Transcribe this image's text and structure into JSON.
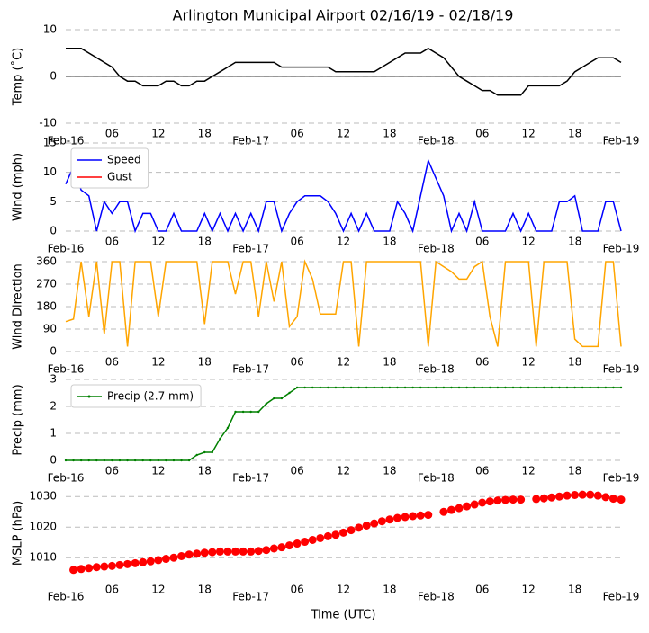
{
  "title": "Arlington Municipal Airport 02/16/19 - 02/18/19",
  "chart_data": [
    {
      "type": "line",
      "ylabel": "Temp ($^\\circ$C)",
      "ylabel_text": "Temp (˚C)",
      "ylim": [
        -10,
        10
      ],
      "yticks": [
        -10,
        0,
        10
      ],
      "grid": true,
      "zero_line": true,
      "xlim": [
        0,
        72
      ],
      "xticks": [
        {
          "value": 0,
          "label": "Feb-16"
        },
        {
          "value": 6,
          "label": "06"
        },
        {
          "value": 12,
          "label": "12"
        },
        {
          "value": 18,
          "label": "18"
        },
        {
          "value": 24,
          "label": "Feb-17"
        },
        {
          "value": 30,
          "label": "06"
        },
        {
          "value": 36,
          "label": "12"
        },
        {
          "value": 42,
          "label": "18"
        },
        {
          "value": 48,
          "label": "Feb-18"
        },
        {
          "value": 54,
          "label": "06"
        },
        {
          "value": 60,
          "label": "12"
        },
        {
          "value": 66,
          "label": "18"
        },
        {
          "value": 72,
          "label": "Feb-19"
        }
      ],
      "x": [
        0,
        1,
        2,
        3,
        4,
        5,
        6,
        7,
        8,
        9,
        10,
        11,
        12,
        13,
        14,
        15,
        16,
        17,
        18,
        19,
        20,
        21,
        22,
        23,
        24,
        25,
        26,
        27,
        28,
        29,
        30,
        31,
        32,
        33,
        34,
        35,
        36,
        37,
        38,
        39,
        40,
        41,
        42,
        43,
        44,
        45,
        46,
        47,
        48,
        49,
        50,
        51,
        52,
        53,
        54,
        55,
        56,
        57,
        58,
        59,
        60,
        61,
        62,
        63,
        64,
        65,
        66,
        67,
        68,
        69,
        70,
        71,
        72
      ],
      "series": [
        {
          "color": "#000000",
          "values": [
            6,
            6,
            6,
            5,
            4,
            3,
            2,
            0,
            -1,
            -1,
            -2,
            -2,
            -2,
            -1,
            -1,
            -2,
            -2,
            -1,
            -1,
            0,
            1,
            2,
            3,
            3,
            3,
            3,
            3,
            3,
            2,
            2,
            2,
            2,
            2,
            2,
            2,
            1,
            1,
            1,
            1,
            1,
            1,
            2,
            3,
            4,
            5,
            5,
            5,
            6,
            5,
            4,
            2,
            0,
            -1,
            -2,
            -3,
            -3,
            -4,
            -4,
            -4,
            -4,
            -2,
            -2,
            -2,
            -2,
            -2,
            -1,
            1,
            2,
            3,
            4,
            4,
            4,
            3
          ]
        }
      ]
    },
    {
      "type": "line",
      "ylabel": "Wind (mph)",
      "ylim": [
        0,
        15
      ],
      "yticks": [
        0,
        5,
        10,
        15
      ],
      "grid": true,
      "legend": "upper left",
      "xlim": [
        0,
        72
      ],
      "xticks": [
        {
          "value": 0,
          "label": "Feb-16"
        },
        {
          "value": 6,
          "label": "06"
        },
        {
          "value": 12,
          "label": "12"
        },
        {
          "value": 18,
          "label": "18"
        },
        {
          "value": 24,
          "label": "Feb-17"
        },
        {
          "value": 30,
          "label": "06"
        },
        {
          "value": 36,
          "label": "12"
        },
        {
          "value": 42,
          "label": "18"
        },
        {
          "value": 48,
          "label": "Feb-18"
        },
        {
          "value": 54,
          "label": "06"
        },
        {
          "value": 60,
          "label": "12"
        },
        {
          "value": 66,
          "label": "18"
        },
        {
          "value": 72,
          "label": "Feb-19"
        }
      ],
      "x": [
        0,
        1,
        2,
        3,
        4,
        5,
        6,
        7,
        8,
        9,
        10,
        11,
        12,
        13,
        14,
        15,
        16,
        17,
        18,
        19,
        20,
        21,
        22,
        23,
        24,
        25,
        26,
        27,
        28,
        29,
        30,
        31,
        32,
        33,
        34,
        35,
        36,
        37,
        38,
        39,
        40,
        41,
        42,
        43,
        44,
        45,
        46,
        47,
        48,
        49,
        50,
        51,
        52,
        53,
        54,
        55,
        56,
        57,
        58,
        59,
        60,
        61,
        62,
        63,
        64,
        65,
        66,
        67,
        68,
        69,
        70,
        71,
        72
      ],
      "series": [
        {
          "name": "Speed",
          "color": "#0000ff",
          "values": [
            8,
            11,
            7,
            6,
            0,
            5,
            3,
            5,
            5,
            0,
            3,
            3,
            0,
            0,
            3,
            0,
            0,
            0,
            3,
            0,
            3,
            0,
            3,
            0,
            3,
            0,
            5,
            5,
            0,
            3,
            5,
            6,
            6,
            6,
            5,
            3,
            0,
            3,
            0,
            3,
            0,
            0,
            0,
            5,
            3,
            0,
            6,
            12,
            9,
            6,
            0,
            3,
            0,
            5,
            0,
            0,
            0,
            0,
            3,
            0,
            3,
            0,
            0,
            0,
            5,
            5,
            6,
            0,
            0,
            0,
            5,
            5,
            0
          ]
        },
        {
          "name": "Gust",
          "color": "#ff0000",
          "values": [
            null,
            null,
            null,
            null,
            null,
            null,
            null,
            null,
            null,
            null,
            null,
            null,
            null,
            null,
            null,
            null,
            null,
            null,
            null,
            null,
            null,
            null,
            null,
            null,
            null,
            null,
            null,
            null,
            null,
            null,
            null,
            null,
            null,
            null,
            null,
            null,
            null,
            null,
            null,
            null,
            null,
            null,
            null,
            null,
            null,
            null,
            null,
            null,
            null,
            null,
            null,
            null,
            null,
            null,
            null,
            null,
            null,
            null,
            null,
            null,
            null,
            null,
            null,
            null,
            null,
            null,
            null,
            null,
            null,
            null,
            null,
            null,
            null
          ]
        }
      ]
    },
    {
      "type": "line",
      "ylabel": "Wind Direction",
      "ylim": [
        0,
        360
      ],
      "yticks": [
        0,
        90,
        180,
        270,
        360
      ],
      "grid": true,
      "xlim": [
        0,
        72
      ],
      "xticks": [
        {
          "value": 0,
          "label": "Feb-16"
        },
        {
          "value": 6,
          "label": "06"
        },
        {
          "value": 12,
          "label": "12"
        },
        {
          "value": 18,
          "label": "18"
        },
        {
          "value": 24,
          "label": "Feb-17"
        },
        {
          "value": 30,
          "label": "06"
        },
        {
          "value": 36,
          "label": "12"
        },
        {
          "value": 42,
          "label": "18"
        },
        {
          "value": 48,
          "label": "Feb-18"
        },
        {
          "value": 54,
          "label": "06"
        },
        {
          "value": 60,
          "label": "12"
        },
        {
          "value": 66,
          "label": "18"
        },
        {
          "value": 72,
          "label": "Feb-19"
        }
      ],
      "x": [
        0,
        1,
        2,
        3,
        4,
        5,
        6,
        7,
        8,
        9,
        10,
        11,
        12,
        13,
        14,
        15,
        16,
        17,
        18,
        19,
        20,
        21,
        22,
        23,
        24,
        25,
        26,
        27,
        28,
        29,
        30,
        31,
        32,
        33,
        34,
        35,
        36,
        37,
        38,
        39,
        40,
        41,
        42,
        43,
        44,
        45,
        46,
        47,
        48,
        49,
        50,
        51,
        52,
        53,
        54,
        55,
        56,
        57,
        58,
        59,
        60,
        61,
        62,
        63,
        64,
        65,
        66,
        67,
        68,
        69,
        70,
        71,
        72
      ],
      "series": [
        {
          "color": "#ffa500",
          "values": [
            120,
            130,
            360,
            140,
            360,
            70,
            360,
            360,
            20,
            360,
            360,
            360,
            140,
            360,
            360,
            360,
            360,
            360,
            110,
            360,
            360,
            360,
            230,
            360,
            360,
            140,
            360,
            200,
            360,
            100,
            140,
            360,
            290,
            150,
            150,
            150,
            360,
            360,
            20,
            360,
            360,
            360,
            360,
            360,
            360,
            360,
            360,
            20,
            360,
            340,
            320,
            290,
            290,
            340,
            360,
            140,
            20,
            360,
            360,
            360,
            360,
            20,
            360,
            360,
            360,
            360,
            50,
            20,
            20,
            20,
            360,
            360,
            20
          ]
        }
      ]
    },
    {
      "type": "line",
      "ylabel": "Precip (mm)",
      "ylim": [
        0,
        3
      ],
      "yticks": [
        0,
        1,
        2,
        3
      ],
      "grid": true,
      "legend": "upper left",
      "markers": true,
      "xlim": [
        0,
        72
      ],
      "xticks": [
        {
          "value": 0,
          "label": "Feb-16"
        },
        {
          "value": 6,
          "label": "06"
        },
        {
          "value": 12,
          "label": "12"
        },
        {
          "value": 18,
          "label": "18"
        },
        {
          "value": 24,
          "label": "Feb-17"
        },
        {
          "value": 30,
          "label": "06"
        },
        {
          "value": 36,
          "label": "12"
        },
        {
          "value": 42,
          "label": "18"
        },
        {
          "value": 48,
          "label": "Feb-18"
        },
        {
          "value": 54,
          "label": "06"
        },
        {
          "value": 60,
          "label": "12"
        },
        {
          "value": 66,
          "label": "18"
        },
        {
          "value": 72,
          "label": "Feb-19"
        }
      ],
      "x": [
        0,
        1,
        2,
        3,
        4,
        5,
        6,
        7,
        8,
        9,
        10,
        11,
        12,
        13,
        14,
        15,
        16,
        17,
        18,
        19,
        20,
        21,
        22,
        23,
        24,
        25,
        26,
        27,
        28,
        29,
        30,
        31,
        32,
        33,
        34,
        35,
        36,
        37,
        38,
        39,
        40,
        41,
        42,
        43,
        44,
        45,
        46,
        47,
        48,
        49,
        50,
        51,
        52,
        53,
        54,
        55,
        56,
        57,
        58,
        59,
        60,
        61,
        62,
        63,
        64,
        65,
        66,
        67,
        68,
        69,
        70,
        71,
        72
      ],
      "series": [
        {
          "name": "Precip (2.7 mm)",
          "color": "#008000",
          "values": [
            0,
            0,
            0,
            0,
            0,
            0,
            0,
            0,
            0,
            0,
            0,
            0,
            0,
            0,
            0,
            0,
            0,
            0.2,
            0.3,
            0.3,
            0.8,
            1.2,
            1.8,
            1.8,
            1.8,
            1.8,
            2.1,
            2.3,
            2.3,
            2.5,
            2.7,
            2.7,
            2.7,
            2.7,
            2.7,
            2.7,
            2.7,
            2.7,
            2.7,
            2.7,
            2.7,
            2.7,
            2.7,
            2.7,
            2.7,
            2.7,
            2.7,
            2.7,
            2.7,
            2.7,
            2.7,
            2.7,
            2.7,
            2.7,
            2.7,
            2.7,
            2.7,
            2.7,
            2.7,
            2.7,
            2.7,
            2.7,
            2.7,
            2.7,
            2.7,
            2.7,
            2.7,
            2.7,
            2.7,
            2.7,
            2.7,
            2.7,
            2.7
          ]
        }
      ]
    },
    {
      "type": "scatter",
      "ylabel": "MSLP (hPa)",
      "xlabel": "Time (UTC)",
      "ylim": [
        1003,
        1033
      ],
      "yticks": [
        1010,
        1020,
        1030
      ],
      "grid": true,
      "xlim": [
        0,
        72
      ],
      "xticks": [
        {
          "value": 0,
          "label": "Feb-16"
        },
        {
          "value": 6,
          "label": "06"
        },
        {
          "value": 12,
          "label": "12"
        },
        {
          "value": 18,
          "label": "18"
        },
        {
          "value": 24,
          "label": "Feb-17"
        },
        {
          "value": 30,
          "label": "06"
        },
        {
          "value": 36,
          "label": "12"
        },
        {
          "value": 42,
          "label": "18"
        },
        {
          "value": 48,
          "label": "Feb-18"
        },
        {
          "value": 54,
          "label": "06"
        },
        {
          "value": 60,
          "label": "12"
        },
        {
          "value": 66,
          "label": "18"
        },
        {
          "value": 72,
          "label": "Feb-19"
        }
      ],
      "x": [
        0,
        1,
        2,
        3,
        4,
        5,
        6,
        7,
        8,
        9,
        10,
        11,
        12,
        13,
        14,
        15,
        16,
        17,
        18,
        19,
        20,
        21,
        22,
        23,
        24,
        25,
        26,
        27,
        28,
        29,
        30,
        31,
        32,
        33,
        34,
        35,
        36,
        37,
        38,
        39,
        40,
        41,
        42,
        43,
        44,
        45,
        46,
        47,
        48,
        49,
        50,
        51,
        52,
        53,
        54,
        55,
        56,
        57,
        58,
        59,
        60,
        61,
        62,
        63,
        64,
        65,
        66,
        67,
        68,
        69,
        70,
        71,
        72
      ],
      "series": [
        {
          "color": "#ff0000",
          "values": [
            null,
            1006,
            1006.3,
            1006.6,
            1006.9,
            1007.1,
            1007.3,
            1007.6,
            1007.9,
            1008.2,
            1008.5,
            1008.8,
            1009.2,
            1009.6,
            1010,
            1010.5,
            1011,
            1011.3,
            1011.6,
            1011.8,
            1012,
            1012,
            1012,
            1012,
            1012,
            1012.2,
            1012.5,
            1013,
            1013.4,
            1014,
            1014.6,
            1015.2,
            1015.8,
            1016.4,
            1017,
            1017.5,
            1018.2,
            1019,
            1019.8,
            1020.5,
            1021.2,
            1021.9,
            1022.5,
            1023,
            1023.3,
            1023.6,
            1023.8,
            1024,
            null,
            1025,
            1025.6,
            1026.2,
            1026.8,
            1027.4,
            1028,
            1028.4,
            1028.7,
            1028.9,
            1029,
            1029,
            null,
            1029.2,
            1029.4,
            1029.7,
            1030,
            1030.3,
            1030.5,
            1030.6,
            1030.6,
            1030.3,
            1029.8,
            1029.3,
            1029
          ]
        }
      ]
    }
  ]
}
